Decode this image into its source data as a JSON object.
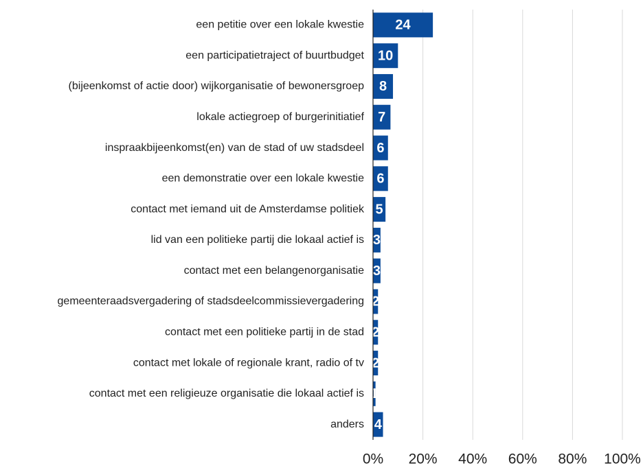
{
  "chart_data": {
    "type": "barh",
    "categories": [
      "een petitie over een lokale kwestie",
      "een participatietraject of buurtbudget",
      "(bijeenkomst of actie door) wijkorganisatie of bewonersgroep",
      "lokale actiegroep of burgerinitiatief",
      "inspraakbijeenkomst(en) van de stad of uw stadsdeel",
      "een demonstratie over een lokale kwestie",
      "contact  met iemand uit de Amsterdamse politiek",
      "lid van een politieke partij die lokaal actief is",
      "contact  met een belangenorganisatie",
      "gemeenteraadsvergadering of stadsdeelcommissievergadering",
      "contact met een politieke partij in de stad",
      "contact met lokale of regionale krant, radio of tv",
      "contact met een religieuze organisatie die lokaal actief is",
      "anders"
    ],
    "values": [
      24,
      10,
      8,
      7,
      6,
      6,
      5,
      3,
      3,
      2,
      2,
      2,
      1,
      4
    ],
    "color": "#0b4c9c",
    "xlim": [
      0,
      100
    ],
    "xticks": [
      {
        "value": 0,
        "label": "0%"
      },
      {
        "value": 20,
        "label": "20%"
      },
      {
        "value": 40,
        "label": "40%"
      },
      {
        "value": 60,
        "label": "60%"
      },
      {
        "value": 80,
        "label": "80%"
      },
      {
        "value": 100,
        "label": "100%"
      }
    ],
    "grid": true
  }
}
